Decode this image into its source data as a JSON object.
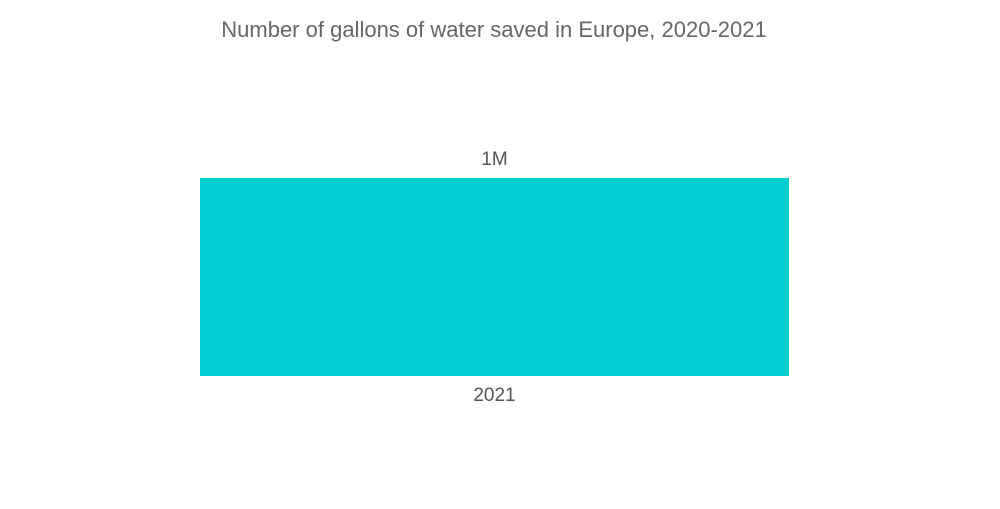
{
  "chart_data": {
    "type": "bar",
    "title": "Number of gallons of water saved in Europe, 2020-2021",
    "categories": [
      "2021"
    ],
    "values": [
      1000000
    ],
    "value_labels": [
      "1M"
    ],
    "color": "#00ced1"
  }
}
